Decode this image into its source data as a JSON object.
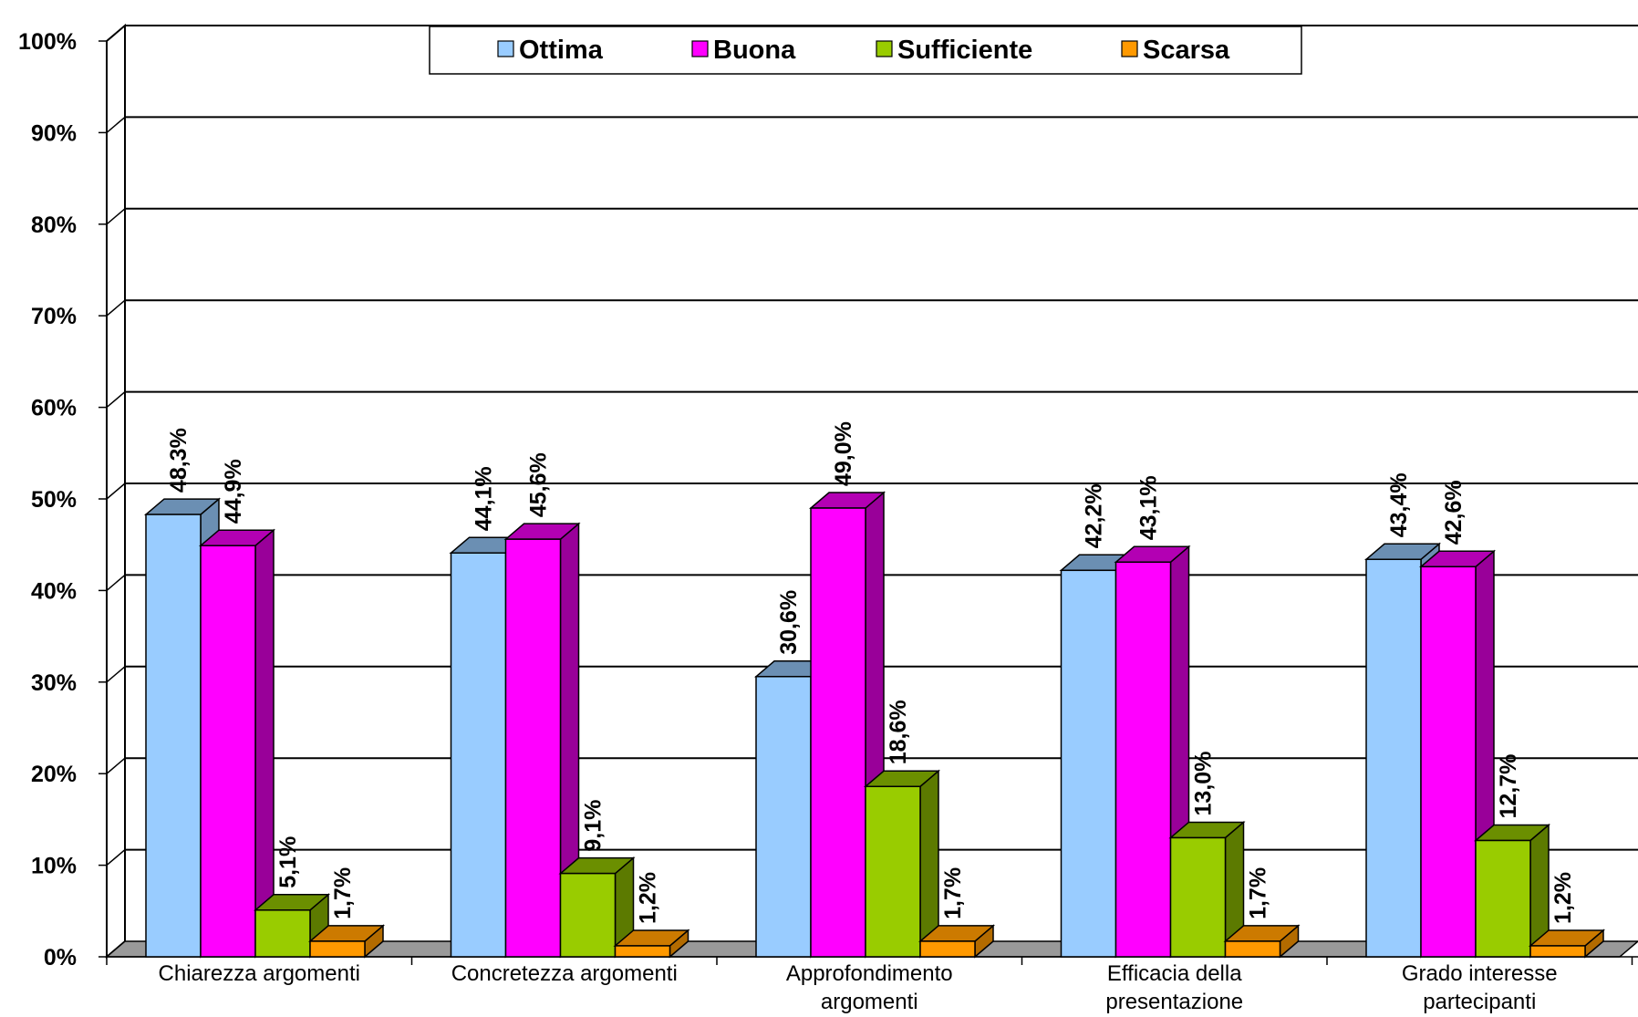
{
  "chart_data": {
    "type": "bar",
    "categories": [
      [
        "Chiarezza argomenti"
      ],
      [
        "Concretezza argomenti"
      ],
      [
        "Approfondimento",
        "argomenti"
      ],
      [
        "Efficacia della",
        "presentazione"
      ],
      [
        "Grado interesse",
        "partecipanti"
      ]
    ],
    "series": [
      {
        "name": "Ottima",
        "color": "#99ccff",
        "top_color": "#6b8fb3",
        "side_color": "#6b8fb3",
        "values": [
          48.3,
          44.1,
          30.6,
          42.2,
          43.4
        ],
        "labels": [
          "48,3%",
          "44,1%",
          "30,6%",
          "42,2%",
          "43,4%"
        ]
      },
      {
        "name": "Buona",
        "color": "#ff00ff",
        "top_color": "#b300b3",
        "side_color": "#990099",
        "values": [
          44.9,
          45.6,
          49.0,
          43.1,
          42.6
        ],
        "labels": [
          "44,9%",
          "45,6%",
          "49,0%",
          "43,1%",
          "42,6%"
        ]
      },
      {
        "name": "Sufficiente",
        "color": "#99cc00",
        "top_color": "#6b8f00",
        "side_color": "#5c7a00",
        "values": [
          5.1,
          9.1,
          18.6,
          13.0,
          12.7
        ],
        "labels": [
          "5,1%",
          "9,1%",
          "18,6%",
          "13,0%",
          "12,7%"
        ]
      },
      {
        "name": "Scarsa",
        "color": "#ff9900",
        "top_color": "#cc7a00",
        "side_color": "#b36b00",
        "values": [
          1.7,
          1.2,
          1.7,
          1.7,
          1.2
        ],
        "labels": [
          "1,7%",
          "1,2%",
          "1,7%",
          "1,7%",
          "1,2%"
        ]
      }
    ],
    "yticks": [
      "0%",
      "10%",
      "20%",
      "30%",
      "40%",
      "50%",
      "60%",
      "70%",
      "80%",
      "90%",
      "100%"
    ],
    "ylim": [
      0,
      100
    ],
    "grid": true,
    "legend_position": "top-center",
    "style": "3d-clustered-column"
  }
}
